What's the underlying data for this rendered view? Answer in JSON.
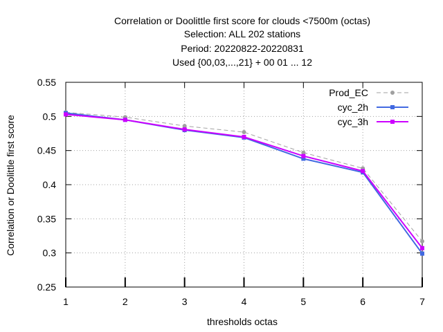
{
  "chart_data": {
    "type": "line",
    "title_lines": [
      "Correlation or Doolittle first score  for clouds <7500m (octas)",
      "Selection: ALL    202 stations",
      "Period: 20220822-20220831",
      "Used {00,03,...,21} + 00 01 ... 12"
    ],
    "xlabel": "thresholds octas",
    "ylabel": "Correlation or Doolittle first score",
    "x": [
      1,
      2,
      3,
      4,
      5,
      6,
      7
    ],
    "xlim": [
      1,
      7
    ],
    "ylim": [
      0.25,
      0.55
    ],
    "x_ticks": [
      "1",
      "2",
      "3",
      "4",
      "5",
      "6",
      "7"
    ],
    "y_ticks": [
      "0.25",
      "0.3",
      "0.35",
      "0.4",
      "0.45",
      "0.5",
      "0.55"
    ],
    "grid": true,
    "legend_position": "top-right",
    "series": [
      {
        "name": "Prod_EC",
        "color": "#a0a0a0",
        "dashed": true,
        "marker": "circle",
        "values": [
          0.506,
          0.499,
          0.486,
          0.477,
          0.447,
          0.424,
          0.317
        ]
      },
      {
        "name": "cyc_2h",
        "color": "#4169e1",
        "dashed": false,
        "marker": "square",
        "values": [
          0.505,
          0.495,
          0.48,
          0.469,
          0.438,
          0.418,
          0.299
        ]
      },
      {
        "name": "cyc_3h",
        "color": "#cc00ff",
        "dashed": false,
        "marker": "square",
        "values": [
          0.503,
          0.495,
          0.481,
          0.47,
          0.442,
          0.42,
          0.307
        ]
      }
    ]
  }
}
